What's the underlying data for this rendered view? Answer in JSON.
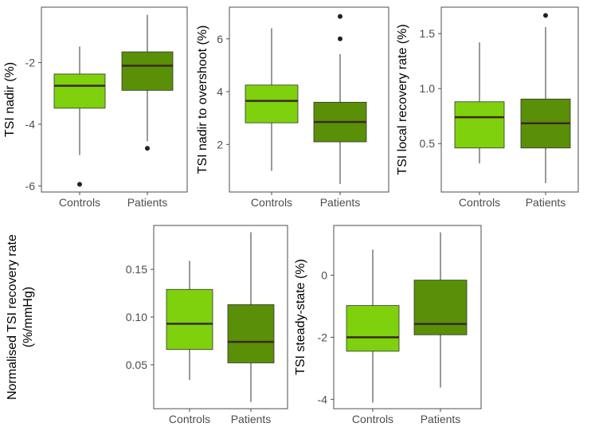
{
  "colors": {
    "controls_fill": "#7ED10C",
    "patients_fill": "#5A8F08",
    "median": "#3A2A1E",
    "whisker": "#333333",
    "panel_border": "#4D4D4D",
    "tick_text": "#4D4D4D",
    "axis_title": "#000000"
  },
  "chart_data": [
    {
      "type": "boxplot",
      "ylabel": "TSI nadir (%)",
      "categories": [
        "Controls",
        "Patients"
      ],
      "ylim": [
        -6.2,
        -0.2
      ],
      "yticks": [
        -6,
        -4,
        -2
      ],
      "ytick_labels": [
        "-6",
        "-4",
        "-2"
      ],
      "boxes": [
        {
          "group": "Controls",
          "whisker_low": -5.0,
          "q1": -3.48,
          "median": -2.75,
          "q3": -2.37,
          "whisker_high": -1.48,
          "outliers": [
            -5.95
          ]
        },
        {
          "group": "Patients",
          "whisker_low": -4.55,
          "q1": -2.9,
          "median": -2.1,
          "q3": -1.65,
          "whisker_high": -0.45,
          "outliers": [
            -4.78
          ]
        }
      ]
    },
    {
      "type": "boxplot",
      "ylabel": "TSI nadir to overshoot (%)",
      "categories": [
        "Controls",
        "Patients"
      ],
      "ylim": [
        0.2,
        7.2
      ],
      "yticks": [
        2,
        4,
        6
      ],
      "ytick_labels": [
        "2",
        "4",
        "6"
      ],
      "boxes": [
        {
          "group": "Controls",
          "whisker_low": 1.0,
          "q1": 2.82,
          "median": 3.65,
          "q3": 4.25,
          "whisker_high": 6.4,
          "outliers": []
        },
        {
          "group": "Patients",
          "whisker_low": 0.5,
          "q1": 2.1,
          "median": 2.85,
          "q3": 3.6,
          "whisker_high": 5.42,
          "outliers": [
            6.0,
            6.85
          ]
        }
      ]
    },
    {
      "type": "boxplot",
      "ylabel": "TSI local recovery rate (%)",
      "categories": [
        "Controls",
        "Patients"
      ],
      "ylim": [
        0.06,
        1.74
      ],
      "yticks": [
        0.5,
        1.0,
        1.5
      ],
      "ytick_labels": [
        "0.5",
        "1.0",
        "1.5"
      ],
      "boxes": [
        {
          "group": "Controls",
          "whisker_low": 0.32,
          "q1": 0.46,
          "median": 0.74,
          "q3": 0.88,
          "whisker_high": 1.42,
          "outliers": []
        },
        {
          "group": "Patients",
          "whisker_low": 0.14,
          "q1": 0.46,
          "median": 0.685,
          "q3": 0.905,
          "whisker_high": 1.56,
          "outliers": [
            1.665
          ]
        }
      ]
    },
    {
      "type": "boxplot",
      "ylabel": "Normalised TSI recovery rate\n(%/mmHg)",
      "categories": [
        "Controls",
        "Patients"
      ],
      "ylim": [
        0.004,
        0.196
      ],
      "yticks": [
        0.05,
        0.1,
        0.15
      ],
      "ytick_labels": [
        "0.05",
        "0.10",
        "0.15"
      ],
      "boxes": [
        {
          "group": "Controls",
          "whisker_low": 0.034,
          "q1": 0.066,
          "median": 0.093,
          "q3": 0.129,
          "whisker_high": 0.159,
          "outliers": []
        },
        {
          "group": "Patients",
          "whisker_low": 0.011,
          "q1": 0.052,
          "median": 0.074,
          "q3": 0.113,
          "whisker_high": 0.189,
          "outliers": []
        }
      ]
    },
    {
      "type": "boxplot",
      "ylabel": "TSI steady-state (%)",
      "categories": [
        "Controls",
        "Patients"
      ],
      "ylim": [
        -4.3,
        1.6
      ],
      "yticks": [
        -4,
        -2,
        0
      ],
      "ytick_labels": [
        "-4",
        "-2",
        "0"
      ],
      "boxes": [
        {
          "group": "Controls",
          "whisker_low": -4.1,
          "q1": -2.45,
          "median": -2.0,
          "q3": -0.98,
          "whisker_high": 0.82,
          "outliers": []
        },
        {
          "group": "Patients",
          "whisker_low": -3.62,
          "q1": -1.92,
          "median": -1.57,
          "q3": -0.16,
          "whisker_high": 1.38,
          "outliers": []
        }
      ]
    }
  ]
}
